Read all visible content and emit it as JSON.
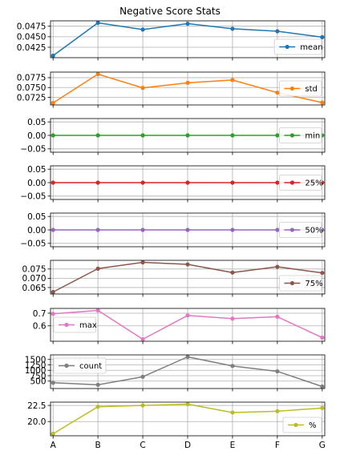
{
  "chart_data": {
    "type": "line",
    "title": "Negative Score Stats",
    "categories": [
      "A",
      "B",
      "C",
      "D",
      "E",
      "F",
      "G"
    ],
    "panels": [
      {
        "name": "mean",
        "color": "#1f77b4",
        "legend_loc": "lower-right",
        "values": [
          0.0405,
          0.0483,
          0.0467,
          0.0481,
          0.0469,
          0.0463,
          0.0449
        ],
        "ylim": [
          0.0405,
          0.0483
        ],
        "yticks": [
          0.0425,
          0.045,
          0.0475
        ],
        "yticklabels": [
          "0.0425",
          "0.0450",
          "0.0475"
        ]
      },
      {
        "name": "std",
        "color": "#ff7f0e",
        "legend_loc": "right",
        "values": [
          0.0711,
          0.0784,
          0.0749,
          0.0762,
          0.0769,
          0.0737,
          0.0712
        ],
        "ylim": [
          0.0711,
          0.0784
        ],
        "yticks": [
          0.0725,
          0.075,
          0.0775
        ],
        "yticklabels": [
          "0.0725",
          "0.0750",
          "0.0775"
        ]
      },
      {
        "name": "min",
        "color": "#2ca02c",
        "legend_loc": "right",
        "values": [
          0,
          0,
          0,
          0,
          0,
          0,
          0
        ],
        "ylim": [
          -0.055,
          0.055
        ],
        "yticks": [
          -0.05,
          0.0,
          0.05
        ],
        "yticklabels": [
          "−0.05",
          "0.00",
          "0.05"
        ]
      },
      {
        "name": "25%",
        "color": "#d62728",
        "legend_loc": "right",
        "values": [
          0,
          0,
          0,
          0,
          0,
          0,
          0
        ],
        "ylim": [
          -0.055,
          0.055
        ],
        "yticks": [
          -0.05,
          0.0,
          0.05
        ],
        "yticklabels": [
          "−0.05",
          "0.00",
          "0.05"
        ]
      },
      {
        "name": "50%",
        "color": "#9467bd",
        "legend_loc": "right",
        "values": [
          0,
          0,
          0,
          0,
          0,
          0,
          0
        ],
        "ylim": [
          -0.055,
          0.055
        ],
        "yticks": [
          -0.05,
          0.0,
          0.05
        ],
        "yticklabels": [
          "−0.05",
          "0.00",
          "0.05"
        ]
      },
      {
        "name": "75%",
        "color": "#8c564b",
        "legend_loc": "lower-right",
        "values": [
          0.0626,
          0.0752,
          0.0786,
          0.0775,
          0.0731,
          0.0762,
          0.0729
        ],
        "ylim": [
          0.0626,
          0.0786
        ],
        "yticks": [
          0.065,
          0.07,
          0.075
        ],
        "yticklabels": [
          "0.065",
          "0.070",
          "0.075"
        ]
      },
      {
        "name": "max",
        "color": "#e377c2",
        "legend_loc": "left",
        "values": [
          0.695,
          0.722,
          0.494,
          0.682,
          0.657,
          0.672,
          0.507
        ],
        "ylim": [
          0.494,
          0.722
        ],
        "yticks": [
          0.6,
          0.7
        ],
        "yticklabels": [
          "0.6",
          "0.7"
        ]
      },
      {
        "name": "count",
        "color": "#7f7f7f",
        "legend_loc": "upper-left",
        "values": [
          425,
          330,
          700,
          1620,
          1200,
          950,
          250
        ],
        "ylim": [
          250,
          1620
        ],
        "yticks": [
          500,
          750,
          1000,
          1250,
          1500
        ],
        "yticklabels": [
          "500",
          "750",
          "1000",
          "1250",
          "1500"
        ]
      },
      {
        "name": "%",
        "color": "#bcbd22",
        "legend_loc": "lower-right",
        "values": [
          18.1,
          22.3,
          22.5,
          22.7,
          21.4,
          21.6,
          22.1
        ],
        "ylim": [
          18.1,
          22.7
        ],
        "yticks": [
          20.0,
          22.5
        ],
        "yticklabels": [
          "20.0",
          "22.5"
        ]
      }
    ]
  }
}
